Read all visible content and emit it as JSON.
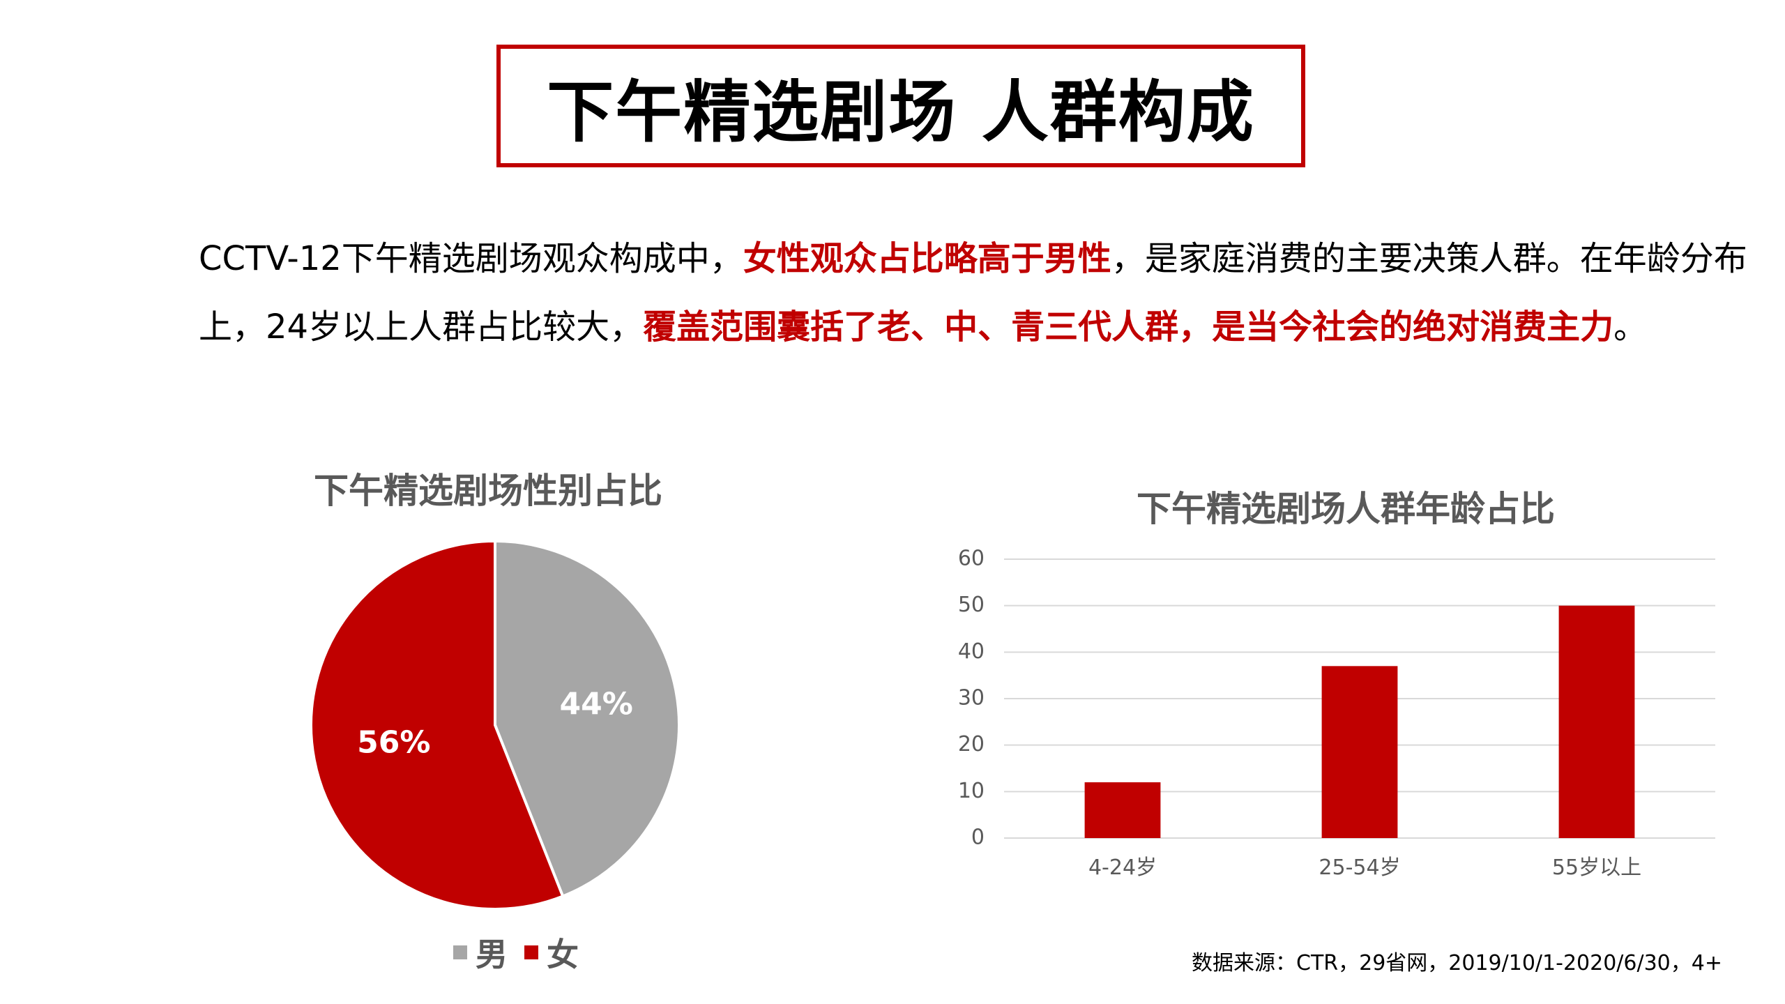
{
  "title": "下午精选剧场 人群构成",
  "intro": {
    "part1": "CCTV-12下午精选剧场观众构成中，",
    "highlight1": "女性观众占比略高于男性",
    "part2": "，是家庭消费的主要决策人群。在年龄分布上，24岁以上人群占比较大，",
    "highlight2": "覆盖范围囊括了老、中、青三代人群，是当今社会的绝对消费主力",
    "part3": "。"
  },
  "colors": {
    "accent": "#c00000",
    "gray": "#a6a6a6",
    "title_gray": "#595959"
  },
  "source": "数据来源：CTR，29省网，2019/10/1-2020/6/30，4+",
  "chart_data": [
    {
      "type": "pie",
      "title": "下午精选剧场性别占比",
      "slices": [
        {
          "name": "男",
          "value": 44,
          "label": "44%",
          "color": "#a6a6a6"
        },
        {
          "name": "女",
          "value": 56,
          "label": "56%",
          "color": "#c00000"
        }
      ],
      "legend": "bottom"
    },
    {
      "type": "bar",
      "title": "下午精选剧场人群年龄占比",
      "categories": [
        "4-24岁",
        "25-54岁",
        "55岁以上"
      ],
      "values": [
        12,
        37,
        50
      ],
      "ylim": [
        0,
        60
      ],
      "yticks": [
        0,
        10,
        20,
        30,
        40,
        50,
        60
      ],
      "grid": true,
      "color": "#c00000"
    }
  ]
}
